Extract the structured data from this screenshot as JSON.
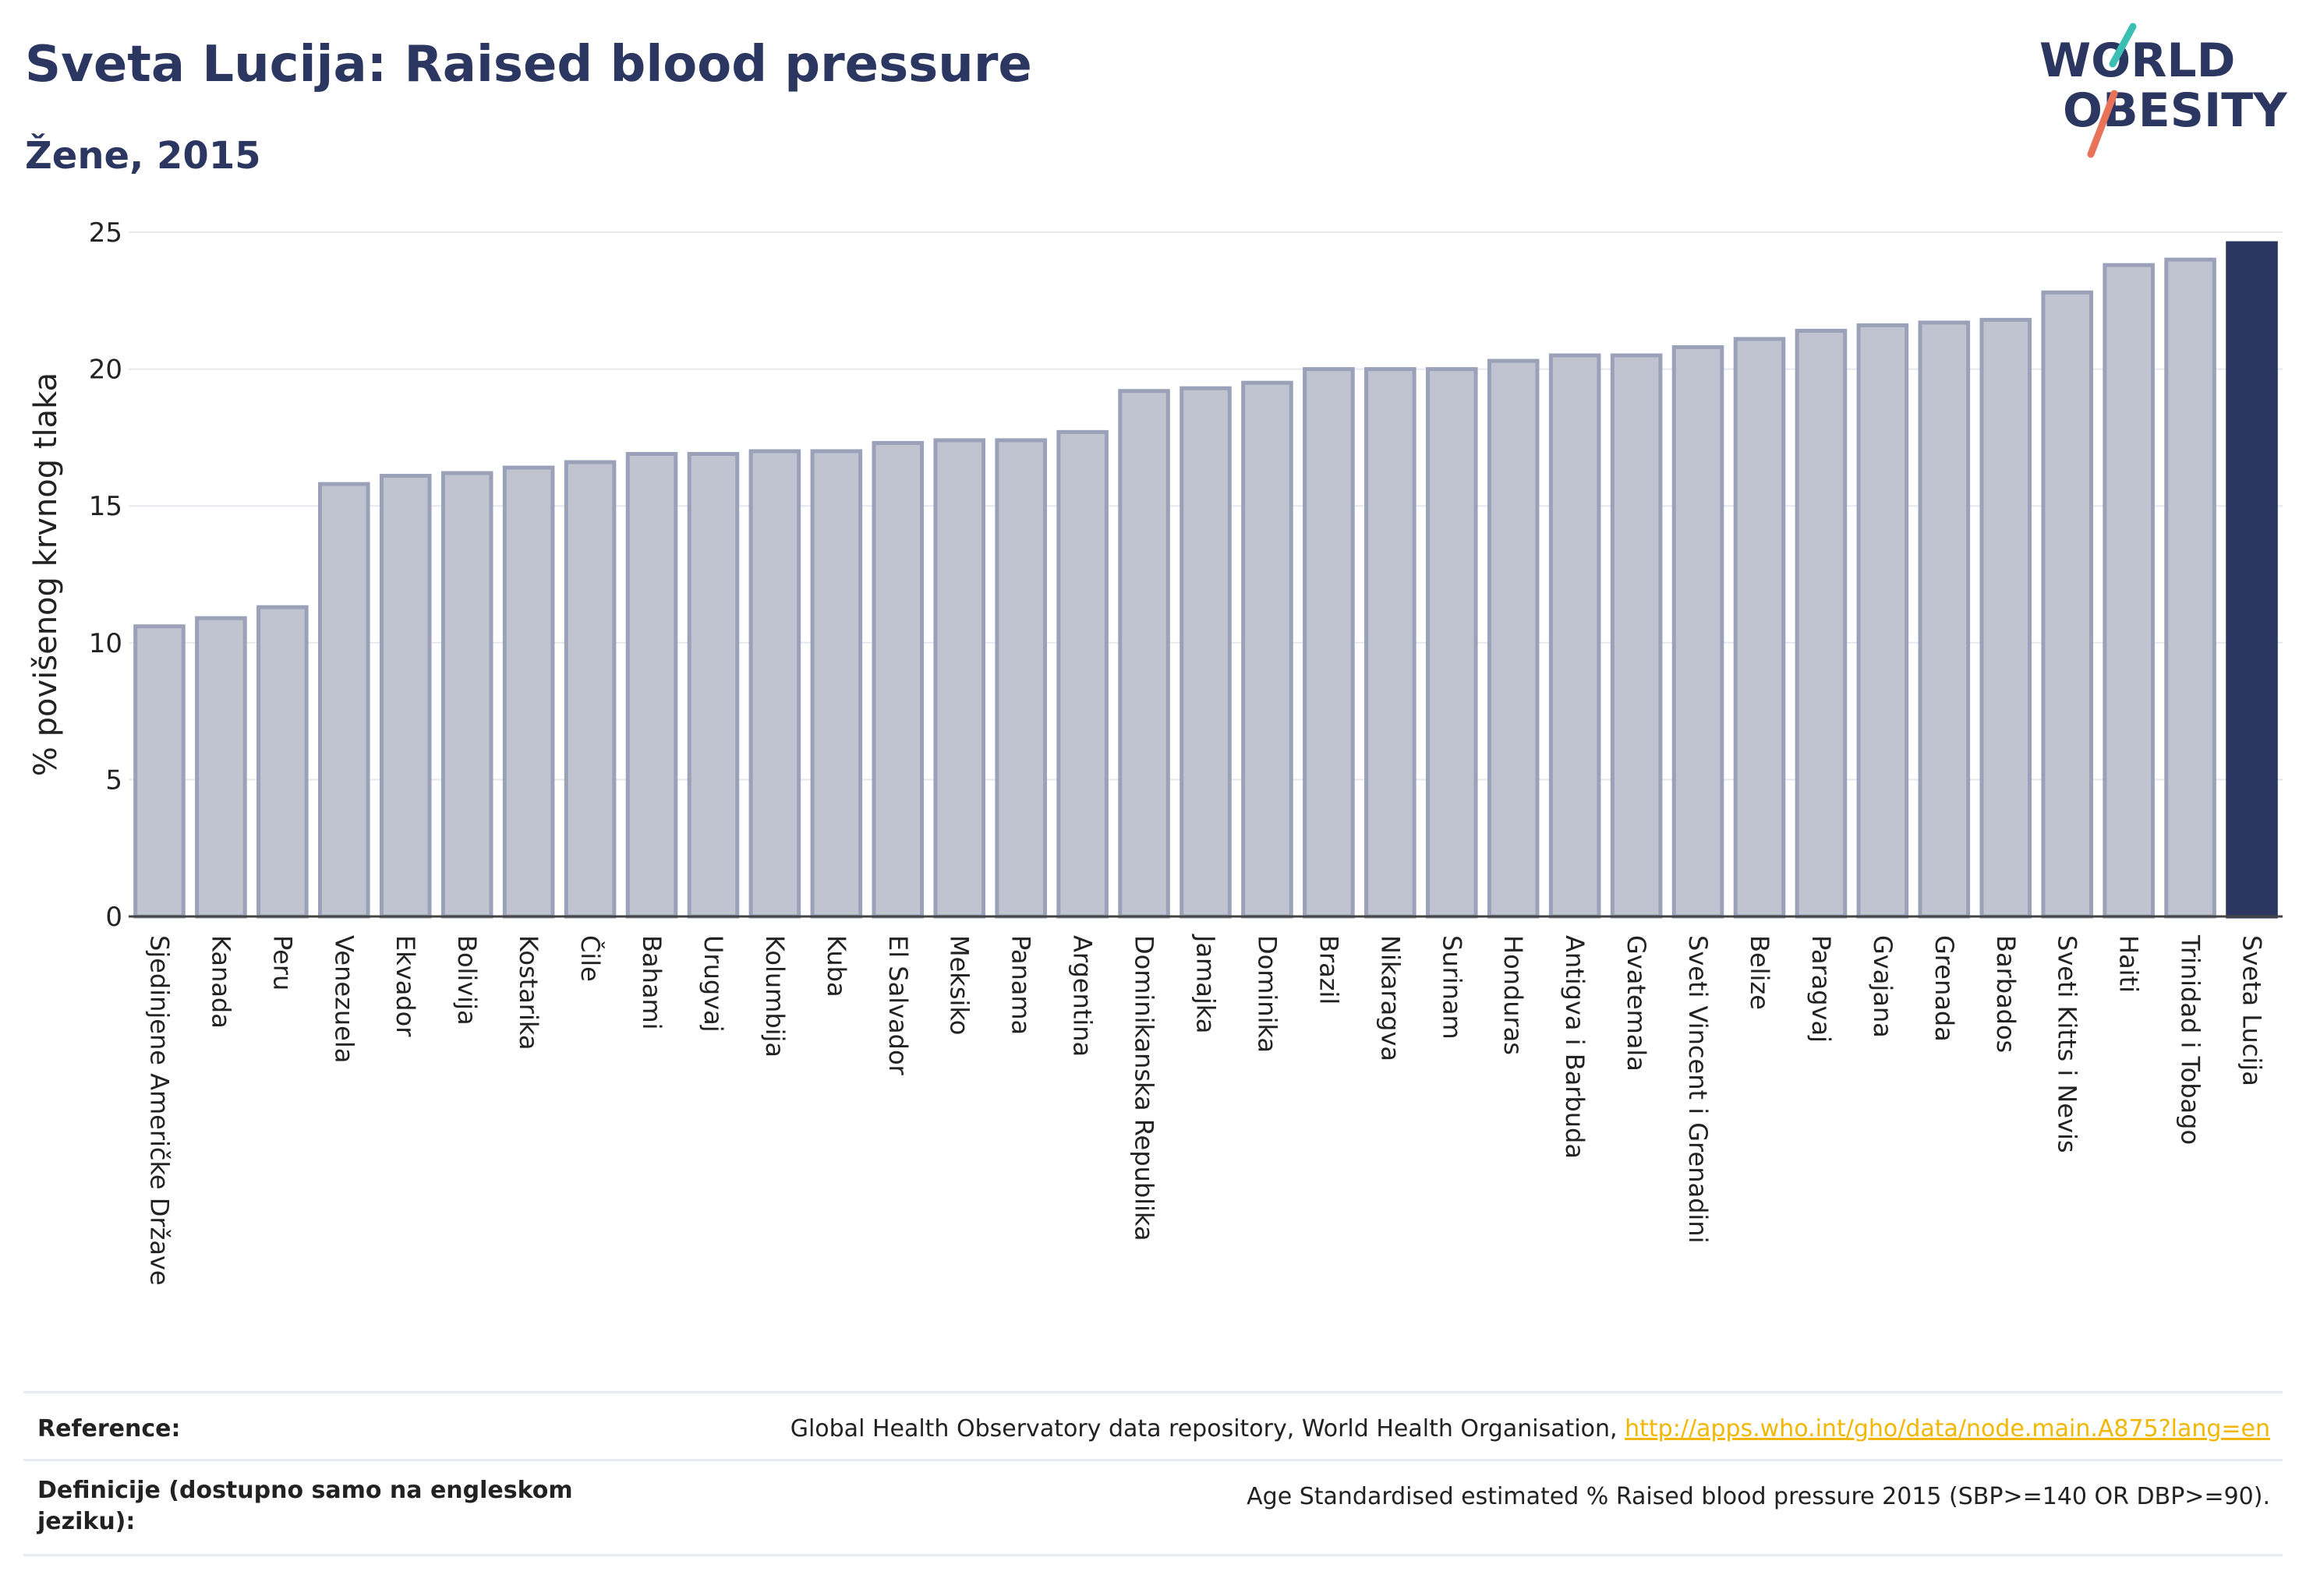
{
  "header": {
    "title": "Sveta Lucija: Raised blood pressure",
    "subtitle": "Žene, 2015"
  },
  "logo": {
    "line1": "WORLD",
    "line2": "OBESITY"
  },
  "colors": {
    "title": "#2c3761",
    "bar_fill": "#c0c4d0",
    "bar_stroke": "#9aa1b8",
    "highlight": "#2c3761",
    "logo_teal": "#3bbfb5",
    "logo_coral": "#e8735a",
    "link": "#f2b705"
  },
  "chart_data": {
    "type": "bar",
    "ylabel": "% povišenog krvnog tlaka",
    "ylim": [
      0,
      25
    ],
    "yticks": [
      0,
      5,
      10,
      15,
      20,
      25
    ],
    "grid": true,
    "highlight_category": "Sveta Lucija",
    "categories": [
      "Sjedinjene Američke Države",
      "Kanada",
      "Peru",
      "Venezuela",
      "Ekvador",
      "Bolivija",
      "Kostarika",
      "Čile",
      "Bahami",
      "Urugvaj",
      "Kolumbija",
      "Kuba",
      "El Salvador",
      "Meksiko",
      "Panama",
      "Argentina",
      "Dominikanska Republika",
      "Jamajka",
      "Dominika",
      "Brazil",
      "Nikaragva",
      "Surinam",
      "Honduras",
      "Antigva i Barbuda",
      "Gvatemala",
      "Sveti Vincent i Grenadini",
      "Belize",
      "Paragvaj",
      "Gvajana",
      "Grenada",
      "Barbados",
      "Sveti Kitts i Nevis",
      "Haiti",
      "Trinidad i Tobago",
      "Sveta Lucija"
    ],
    "values": [
      10.6,
      10.9,
      11.3,
      15.8,
      16.1,
      16.2,
      16.4,
      16.6,
      16.9,
      16.9,
      17.0,
      17.0,
      17.3,
      17.4,
      17.4,
      17.7,
      19.2,
      19.3,
      19.5,
      20.0,
      20.0,
      20.0,
      20.3,
      20.5,
      20.5,
      20.8,
      21.1,
      21.4,
      21.6,
      21.7,
      21.8,
      22.8,
      23.8,
      24.0,
      24.6
    ]
  },
  "footer": {
    "reference_label": "Reference:",
    "reference_text": "Global Health Observatory data repository, World Health Organisation,",
    "reference_link": "http://apps.who.int/gho/data/node.main.A875?lang=en",
    "definition_label": "Definicije (dostupno samo na engleskom jeziku):",
    "definition_text": "Age Standardised estimated % Raised blood pressure 2015 (SBP>=140 OR DBP>=90)."
  }
}
